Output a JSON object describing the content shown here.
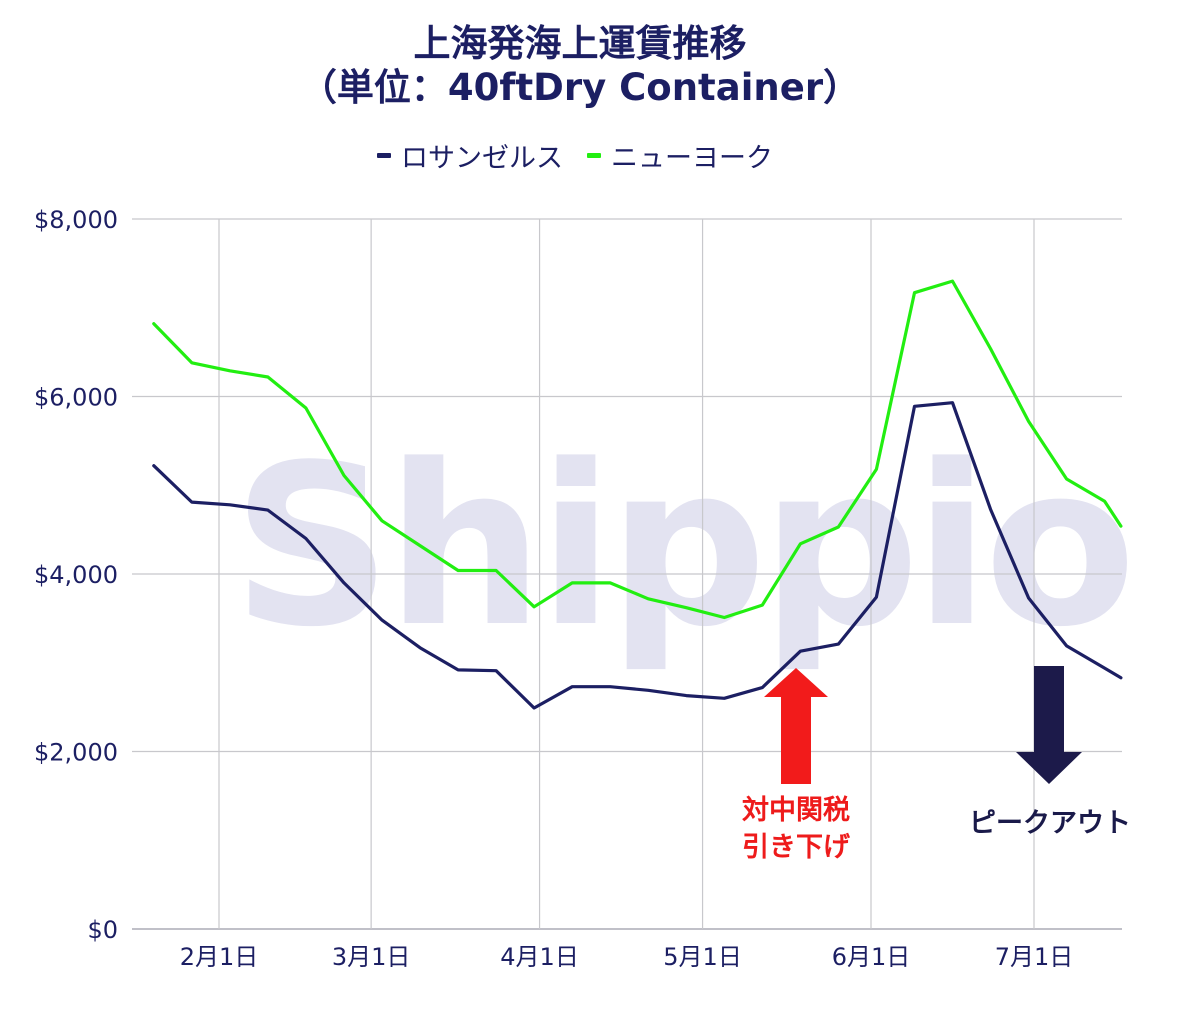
{
  "title_line1": "上海発海上運賃推移",
  "title_line2": "（単位：40ftDry Container）",
  "watermark": "Shippio",
  "annotation_tariff_line1": "対中関税",
  "annotation_tariff_line2": "引き下げ",
  "annotation_peak": "ピークアウト",
  "colors": {
    "title": "#1c1f63",
    "los_angeles": "#1c1f63",
    "new_york": "#22ee11",
    "grid": "#c8c8cc",
    "axis_text": "#1c1f63",
    "arrow_up": "#f21b1b",
    "arrow_down": "#1c1a4a"
  },
  "chart_data": {
    "type": "line",
    "title": "上海発海上運賃推移（単位：40ftDry Container）",
    "x_tick_labels": [
      "2月1日",
      "3月1日",
      "4月1日",
      "5月1日",
      "6月1日",
      "7月1日"
    ],
    "x_tick_dates": [
      "2025-02-01",
      "2025-03-01",
      "2025-04-01",
      "2025-05-01",
      "2025-06-01",
      "2025-07-01"
    ],
    "x_range": [
      "2025-01-20",
      "2025-07-16"
    ],
    "y_tick_labels": [
      "$0",
      "$2,000",
      "$4,000",
      "$6,000",
      "$8,000"
    ],
    "y_ticks": [
      0,
      2000,
      4000,
      6000,
      8000
    ],
    "ylim": [
      0,
      8000
    ],
    "grid": true,
    "legend_position": "top-center",
    "x": [
      "2025-01-20",
      "2025-01-27",
      "2025-02-03",
      "2025-02-10",
      "2025-02-17",
      "2025-02-24",
      "2025-03-03",
      "2025-03-10",
      "2025-03-17",
      "2025-03-24",
      "2025-03-31",
      "2025-04-07",
      "2025-04-14",
      "2025-04-21",
      "2025-04-28",
      "2025-05-05",
      "2025-05-12",
      "2025-05-19",
      "2025-05-26",
      "2025-06-02",
      "2025-06-09",
      "2025-06-16",
      "2025-06-23",
      "2025-06-30",
      "2025-07-07",
      "2025-07-14"
    ],
    "series": [
      {
        "name": "ロサンゼルス",
        "values": [
          5220,
          4810,
          4780,
          4720,
          4400,
          3900,
          3480,
          3170,
          2920,
          2910,
          2490,
          2730,
          2730,
          2690,
          2630,
          2600,
          2720,
          3130,
          3210,
          3740,
          5890,
          5930,
          4730,
          3730,
          3190,
          2940
        ]
      },
      {
        "name": "ニューヨーク",
        "values": [
          6820,
          6380,
          6290,
          6220,
          5870,
          5110,
          4600,
          4320,
          4040,
          4040,
          3630,
          3900,
          3900,
          3720,
          3620,
          3510,
          3650,
          4340,
          4530,
          5180,
          7170,
          7300,
          6540,
          5720,
          5070,
          4820
        ]
      }
    ],
    "series_last_point": {
      "x": "2025-07-17",
      "values": [
        2830,
        4540
      ]
    }
  }
}
